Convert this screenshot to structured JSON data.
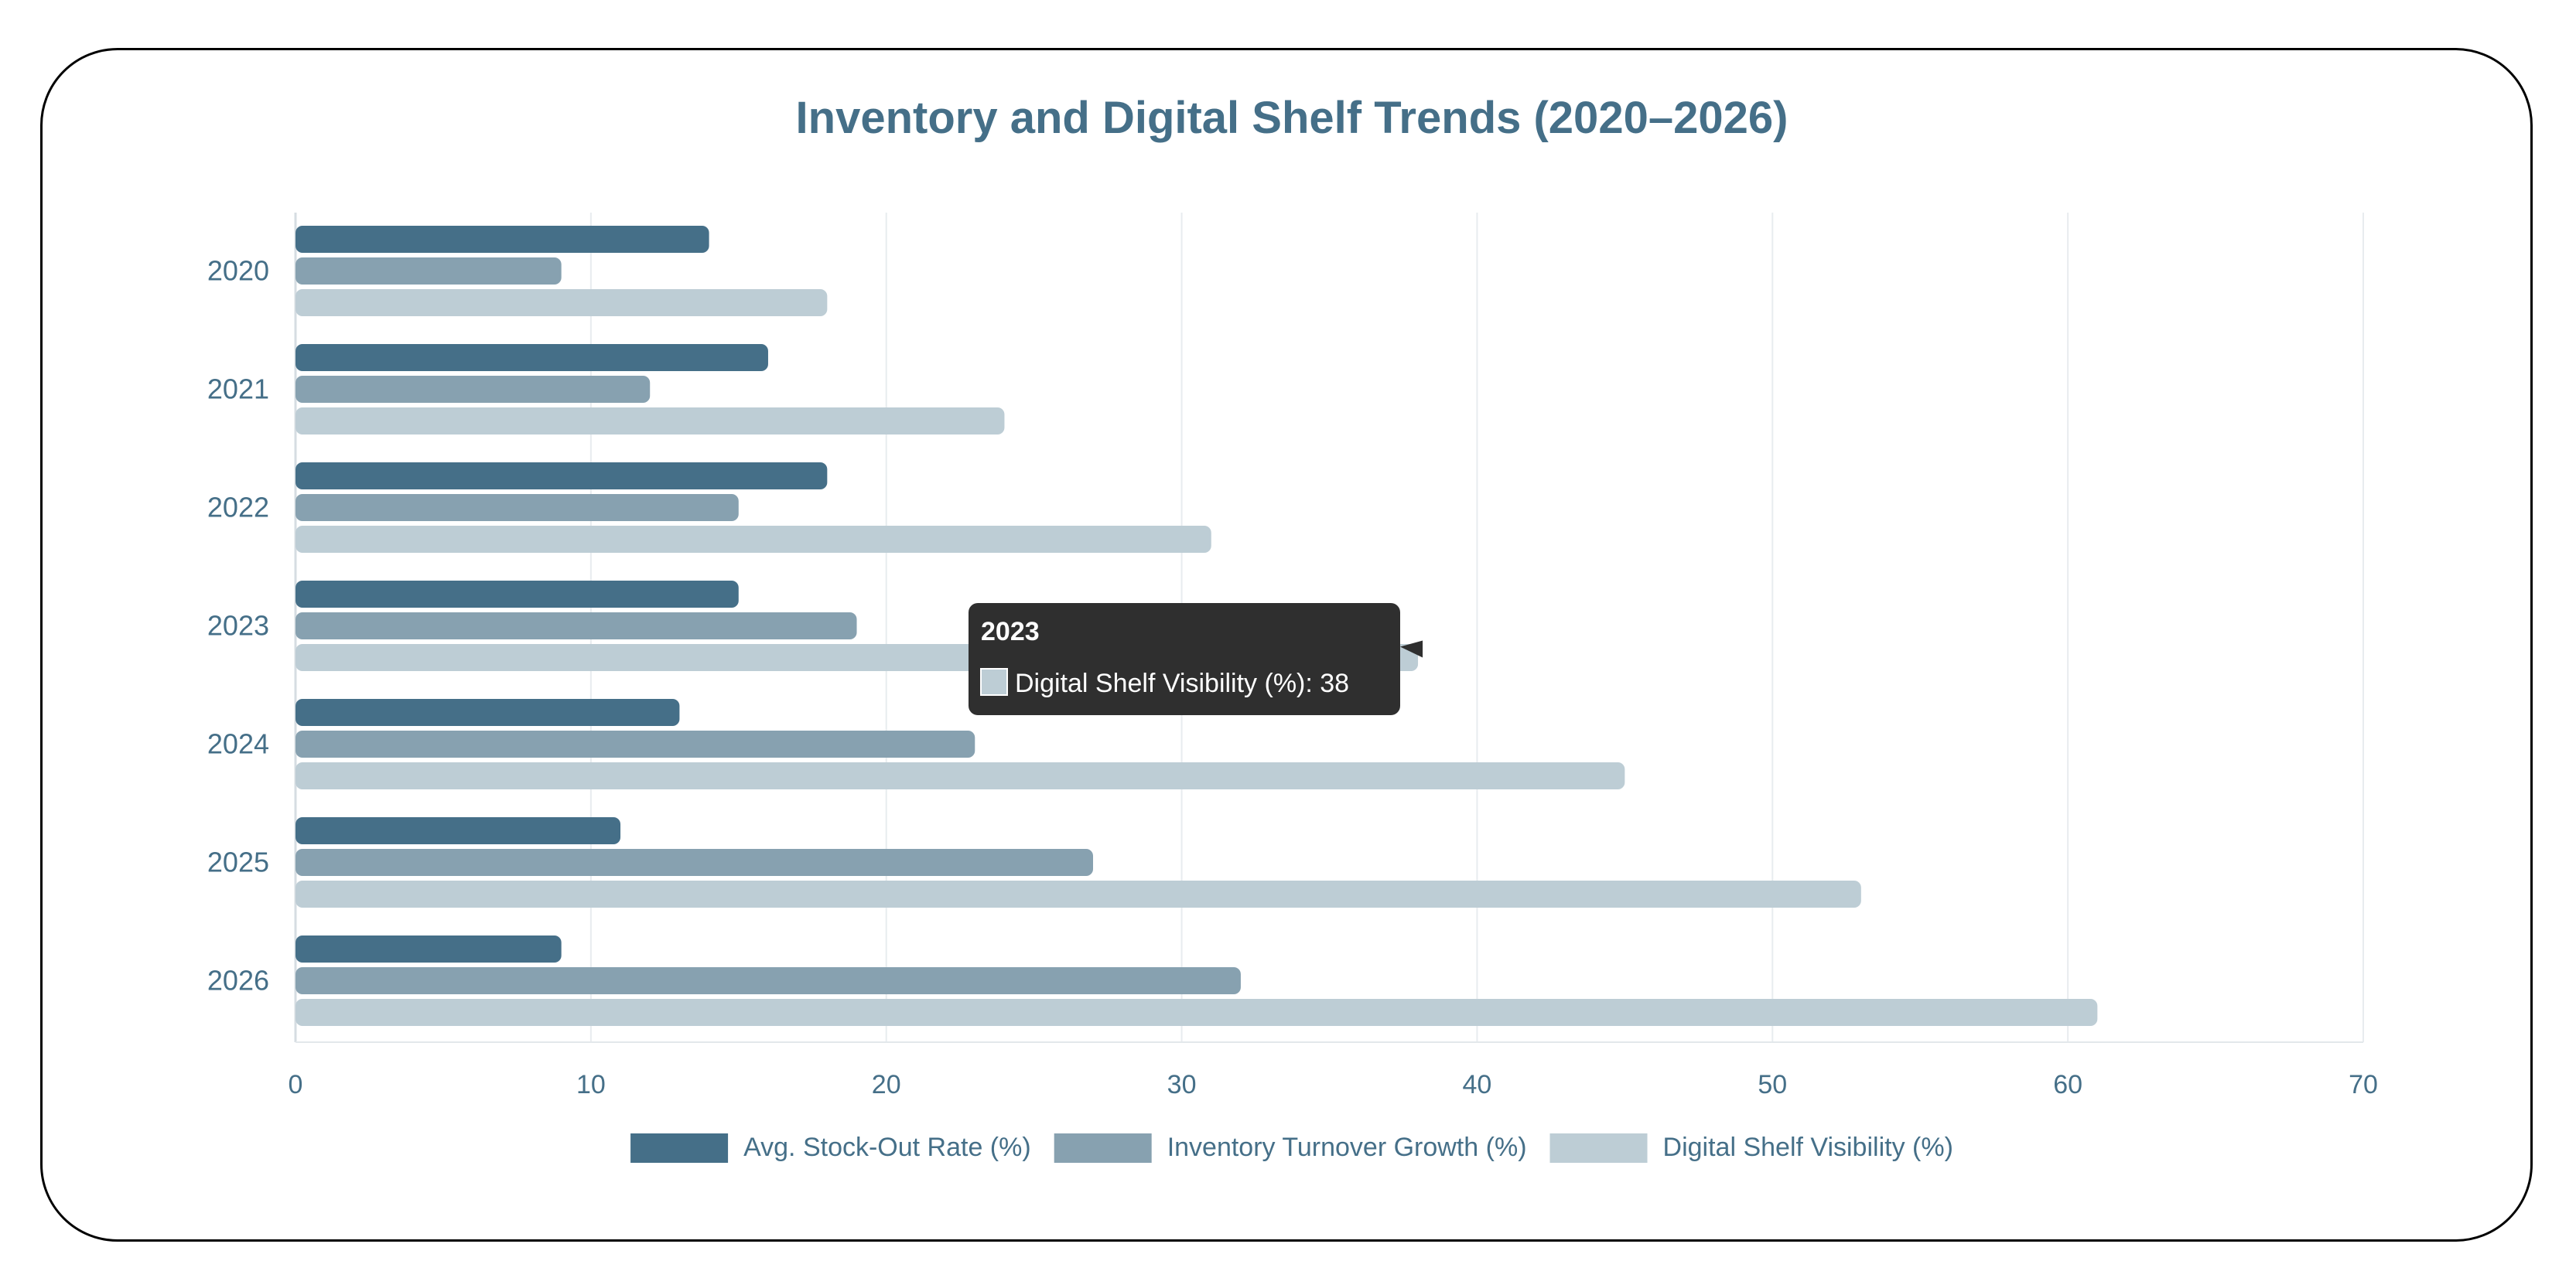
{
  "chart_data": {
    "type": "bar",
    "orientation": "horizontal",
    "title": "Inventory and Digital Shelf Trends (2020–2026)",
    "categories": [
      "2020",
      "2021",
      "2022",
      "2023",
      "2024",
      "2025",
      "2026"
    ],
    "series": [
      {
        "name": "Avg. Stock-Out Rate (%)",
        "values": [
          14,
          16,
          18,
          15,
          13,
          11,
          9
        ],
        "color": "#456f88"
      },
      {
        "name": "Inventory Turnover Growth (%)",
        "values": [
          9,
          12,
          15,
          19,
          23,
          27,
          32
        ],
        "color": "#87a1b0"
      },
      {
        "name": "Digital Shelf Visibility (%)",
        "values": [
          18,
          24,
          31,
          38,
          45,
          53,
          61
        ],
        "color": "#bdcdd5"
      }
    ],
    "xlim": [
      0,
      70
    ],
    "xticks": [
      "0",
      "10",
      "20",
      "30",
      "40",
      "50",
      "60",
      "70"
    ],
    "grid": true,
    "legend_position": "bottom",
    "tooltip": {
      "category": "2023",
      "series_index": 2,
      "title": "2023",
      "text": "Digital Shelf Visibility (%): 38"
    },
    "colors": {
      "title": "#456f88",
      "axis_text": "#456f88",
      "grid": "#e8ecef",
      "tooltip_bg": "#2f2f2f"
    }
  }
}
